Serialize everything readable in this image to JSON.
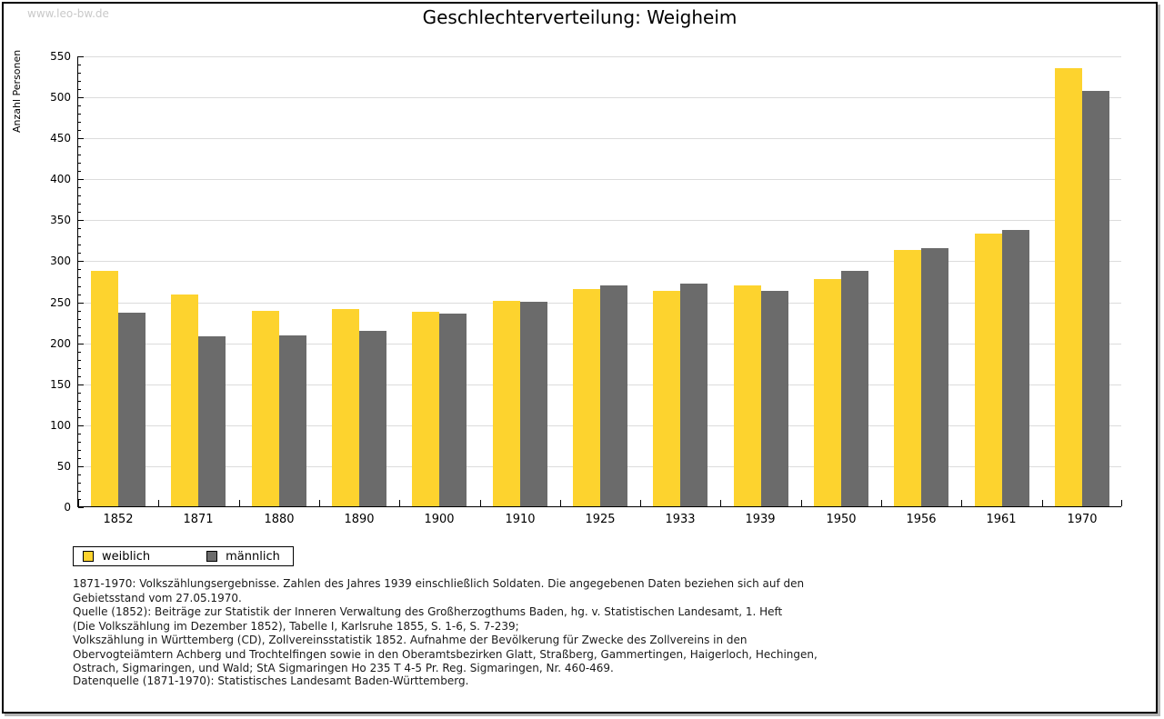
{
  "window": {
    "watermark": "www.leo-bw.de"
  },
  "chart_data": {
    "type": "bar",
    "title": "Geschlechterverteilung: Weigheim",
    "xlabel": "",
    "ylabel": "Anzahl Personen",
    "categories": [
      "1852",
      "1871",
      "1880",
      "1890",
      "1900",
      "1910",
      "1925",
      "1933",
      "1939",
      "1950",
      "1956",
      "1961",
      "1970"
    ],
    "series": [
      {
        "name": "weiblich",
        "color": "#fdd32e",
        "values": [
          287,
          258,
          238,
          241,
          237,
          251,
          265,
          263,
          269,
          277,
          313,
          333,
          535
        ]
      },
      {
        "name": "männlich",
        "color": "#6b6b6b",
        "values": [
          236,
          207,
          209,
          214,
          235,
          250,
          270,
          272,
          263,
          287,
          315,
          337,
          507
        ]
      }
    ],
    "ylim": [
      0,
      550
    ],
    "ytick_step": 50,
    "yminor_step": 10,
    "grid": true,
    "legend_position": "bottom-left"
  },
  "footer": {
    "lines": [
      "1871-1970: Volkszählungsergebnisse. Zahlen des Jahres 1939 einschließlich Soldaten. Die angegebenen Daten beziehen sich auf den",
      "Gebietsstand vom 27.05.1970.",
      "Quelle (1852): Beiträge zur Statistik der Inneren Verwaltung des Großherzogthums Baden, hg. v. Statistischen Landesamt, 1. Heft",
      "(Die Volkszählung im Dezember 1852), Tabelle I, Karlsruhe 1855, S. 1-6, S. 7-239;",
      "Volkszählung in Württemberg (CD), Zollvereinsstatistik 1852. Aufnahme der Bevölkerung für Zwecke des Zollvereins in den",
      "Obervogteiämtern Achberg und Trochtelfingen sowie in den Oberamtsbezirken Glatt, Straßberg, Gammertingen, Haigerloch, Hechingen,",
      "Ostrach, Sigmaringen, und Wald; StA Sigmaringen Ho 235 T 4-5 Pr. Reg. Sigmaringen, Nr. 460-469."
    ],
    "datasource": "Datenquelle (1871-1970): Statistisches Landesamt Baden-Württemberg."
  }
}
